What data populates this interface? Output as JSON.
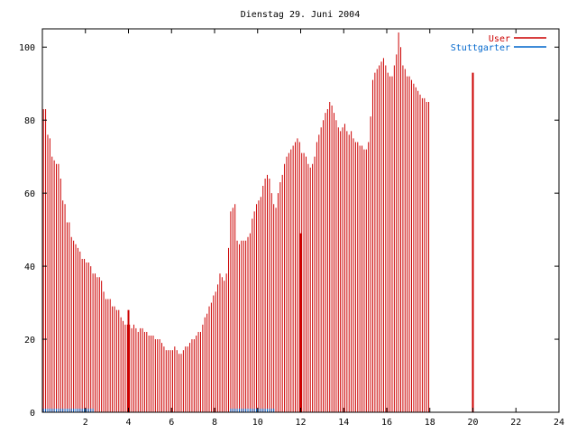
{
  "chart_data": {
    "type": "bar",
    "title": "Dienstag 29. Juni 2004",
    "xlabel": "",
    "ylabel": "",
    "xlim": [
      0,
      24
    ],
    "ylim": [
      0,
      105
    ],
    "xticks": [
      2,
      4,
      6,
      8,
      10,
      12,
      14,
      16,
      18,
      20,
      22,
      24
    ],
    "yticks": [
      0,
      20,
      40,
      60,
      80,
      100
    ],
    "legend_position": "top-right",
    "grid": false,
    "bar_interval_hours": 0.1,
    "series": [
      {
        "name": "User",
        "color": "#cc0000",
        "values": [
          83,
          83,
          76,
          75,
          70,
          69,
          68,
          68,
          64,
          58,
          57,
          52,
          52,
          48,
          47,
          46,
          45,
          44,
          42,
          42,
          41,
          41,
          40,
          38,
          38,
          37,
          37,
          36,
          33,
          31,
          31,
          31,
          29,
          29,
          28,
          28,
          26,
          25,
          24,
          24,
          24,
          23,
          24,
          23,
          22,
          23,
          23,
          22,
          22,
          21,
          21,
          21,
          20,
          20,
          20,
          19,
          18,
          17,
          17,
          17,
          17,
          18,
          17,
          16,
          16,
          17,
          18,
          18,
          19,
          20,
          20,
          21,
          22,
          22,
          24,
          26,
          27,
          29,
          30,
          32,
          33,
          35,
          38,
          37,
          36,
          38,
          45,
          55,
          56,
          57,
          47,
          46,
          47,
          47,
          47,
          48,
          49,
          53,
          55,
          57,
          58,
          59,
          62,
          64,
          65,
          64,
          60,
          57,
          56,
          60,
          63,
          65,
          68,
          70,
          71,
          72,
          73,
          74,
          75,
          74,
          71,
          71,
          70,
          68,
          67,
          68,
          70,
          74,
          76,
          78,
          80,
          82,
          83,
          85,
          84,
          82,
          80,
          78,
          77,
          78,
          79,
          77,
          76,
          77,
          75,
          74,
          74,
          73,
          73,
          72,
          72,
          74,
          81,
          91,
          93,
          94,
          95,
          96,
          97,
          95,
          93,
          92,
          92,
          95,
          98,
          104,
          100,
          95,
          94,
          92,
          92,
          91,
          90,
          89,
          88,
          87,
          86,
          86,
          85,
          85
        ]
      },
      {
        "name": "Stuttgarter",
        "color": "#0066cc",
        "values": [
          1,
          1,
          1,
          1,
          1,
          1,
          1,
          1,
          1,
          1,
          1,
          1,
          1,
          1,
          1,
          1,
          1,
          1,
          1,
          1,
          1,
          1,
          1,
          1,
          0,
          0,
          0,
          0,
          0,
          0,
          0,
          0,
          0,
          0,
          0,
          0,
          0,
          0,
          0,
          0,
          0,
          0,
          0,
          0,
          0,
          0,
          0,
          0,
          0,
          0,
          0,
          0,
          0,
          0,
          0,
          0,
          0,
          0,
          0,
          0,
          0,
          0,
          0,
          0,
          0,
          0,
          0,
          0,
          0,
          0,
          0,
          0,
          0,
          0,
          0,
          0,
          0,
          0,
          0,
          0,
          0,
          0,
          0,
          0,
          0,
          0,
          0,
          1,
          1,
          1,
          1,
          1,
          1,
          1,
          1,
          1,
          1,
          1,
          1,
          1,
          1,
          1,
          1,
          1,
          1,
          1,
          1,
          1,
          0,
          0,
          0,
          0,
          0,
          0,
          0,
          0,
          0,
          0,
          0,
          0,
          0,
          0,
          0,
          0,
          0,
          0,
          0,
          0,
          0,
          0,
          0,
          0,
          0,
          0,
          0,
          0,
          0,
          0,
          0,
          0,
          0,
          0,
          0,
          0,
          0,
          0,
          0,
          0,
          0,
          0,
          0,
          0,
          0,
          0,
          0,
          0,
          0,
          0,
          0,
          0,
          0,
          0,
          0,
          0,
          0,
          0,
          0,
          0,
          0,
          0,
          0,
          0,
          0,
          0,
          0,
          0,
          0,
          0,
          0,
          0,
          0,
          0,
          0,
          0,
          0,
          0,
          0,
          0,
          0,
          0,
          0
        ]
      }
    ],
    "spikes": [
      {
        "x": 4.0,
        "value": 28
      },
      {
        "x": 12.0,
        "value": 49
      },
      {
        "x": 20.0,
        "value": 93
      }
    ]
  }
}
